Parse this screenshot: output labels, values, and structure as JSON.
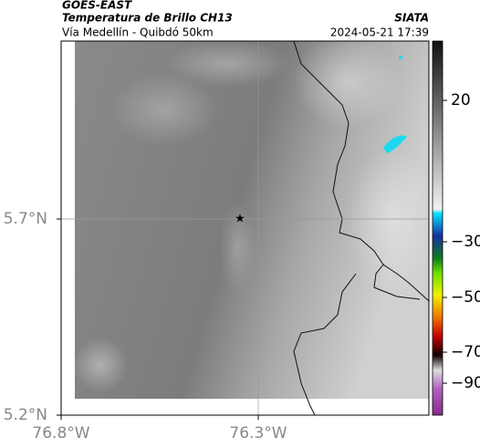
{
  "header": {
    "source": "GOES-EAST",
    "product": "Temperatura de Brillo CH13",
    "agency": "SIATA",
    "region": "Vía Medellín - Quibdó 50km",
    "timestamp": "2024-05-21 17:39"
  },
  "map": {
    "lat_ticks": [
      "5.7°N",
      "5.2°N"
    ],
    "lon_ticks": [
      "76.8°W",
      "76.3°W"
    ]
  },
  "colorbar": {
    "ticks": [
      "20",
      "−30",
      "−50",
      "−70",
      "−90"
    ]
  }
}
